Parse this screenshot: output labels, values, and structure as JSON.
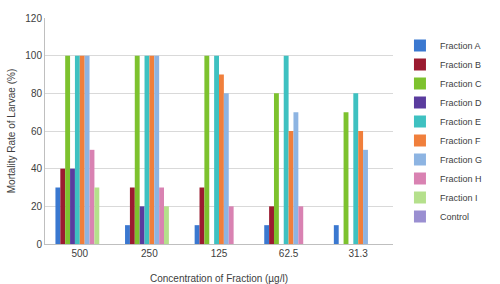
{
  "chart_data": {
    "type": "bar",
    "x_label": "Concentration of Fraction (µg/l)",
    "y_label": "Mortality Rate of Larvae (%)",
    "categories": [
      "500",
      "250",
      "125",
      "62.5",
      "31.3"
    ],
    "series": [
      {
        "name": "Fraction A",
        "color": "#3a78d0",
        "values": [
          30,
          10,
          10,
          10,
          10
        ]
      },
      {
        "name": "Fraction B",
        "color": "#9b1b30",
        "values": [
          40,
          30,
          30,
          20,
          0
        ]
      },
      {
        "name": "Fraction C",
        "color": "#7dc22e",
        "values": [
          100,
          100,
          100,
          80,
          70
        ]
      },
      {
        "name": "Fraction D",
        "color": "#5a3c9e",
        "values": [
          40,
          20,
          0,
          0,
          0
        ]
      },
      {
        "name": "Fraction E",
        "color": "#3ec1c1",
        "values": [
          100,
          100,
          100,
          100,
          80
        ]
      },
      {
        "name": "Fraction F",
        "color": "#f07f3c",
        "values": [
          100,
          100,
          90,
          60,
          60
        ]
      },
      {
        "name": "Fraction G",
        "color": "#8db4e2",
        "values": [
          100,
          100,
          80,
          70,
          50
        ]
      },
      {
        "name": "Fraction H",
        "color": "#d982b2",
        "values": [
          50,
          30,
          20,
          20,
          0
        ]
      },
      {
        "name": "Fraction I",
        "color": "#b5e08c",
        "values": [
          30,
          20,
          0,
          0,
          0
        ]
      },
      {
        "name": "Control",
        "color": "#9a8fd1",
        "values": [
          0,
          0,
          0,
          0,
          0
        ]
      }
    ],
    "ylim": [
      0,
      120
    ],
    "yticks": [
      0,
      20,
      40,
      60,
      80,
      100,
      120
    ],
    "grid": true,
    "legend": "right"
  }
}
